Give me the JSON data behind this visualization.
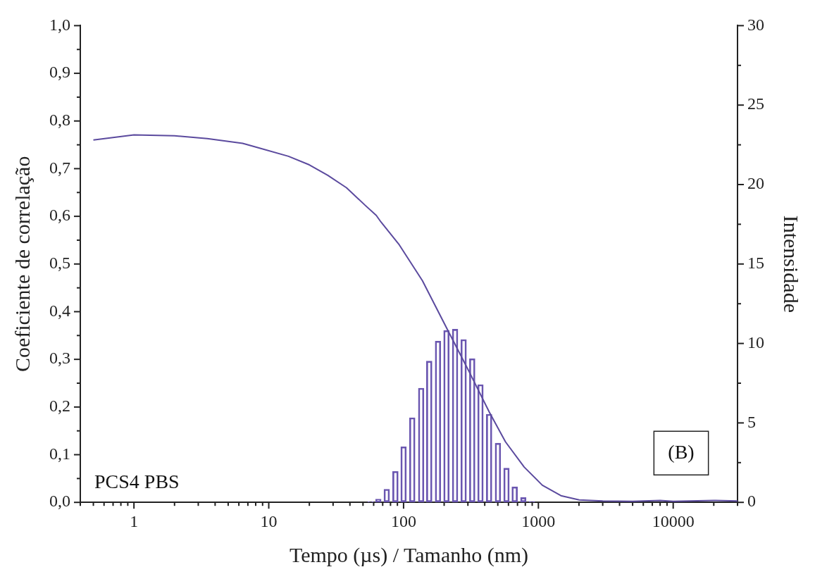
{
  "chart_data": {
    "type": "line",
    "xlabel": "Tempo (µs) / Tamanho (nm)",
    "ylabel": "Coeficiente de correlação",
    "y2label": "Intensidade",
    "annotations": [
      "PCS4 PBS",
      "(B)"
    ],
    "log": "x",
    "marker": "none",
    "line_style": "solid",
    "grid": false,
    "xlim": [
      0.4,
      30000
    ],
    "xticks": [
      {
        "value": 0.4,
        "label": null
      },
      {
        "value": 0.5,
        "label": null
      },
      {
        "value": 0.6,
        "label": null
      },
      {
        "value": 0.7,
        "label": null
      },
      {
        "value": 0.8,
        "label": null
      },
      {
        "value": 0.9,
        "label": null
      },
      1,
      {
        "value": 2,
        "label": null
      },
      {
        "value": 3,
        "label": null
      },
      {
        "value": 4,
        "label": null
      },
      {
        "value": 5,
        "label": null
      },
      {
        "value": 6,
        "label": null
      },
      {
        "value": 7,
        "label": null
      },
      {
        "value": 8,
        "label": null
      },
      {
        "value": 9,
        "label": null
      },
      10,
      {
        "value": 20,
        "label": null
      },
      {
        "value": 30,
        "label": null
      },
      {
        "value": 40,
        "label": null
      },
      {
        "value": 50,
        "label": null
      },
      {
        "value": 60,
        "label": null
      },
      {
        "value": 70,
        "label": null
      },
      {
        "value": 80,
        "label": null
      },
      {
        "value": 90,
        "label": null
      },
      100,
      {
        "value": 200,
        "label": null
      },
      {
        "value": 300,
        "label": null
      },
      {
        "value": 400,
        "label": null
      },
      {
        "value": 500,
        "label": null
      },
      {
        "value": 600,
        "label": null
      },
      {
        "value": 700,
        "label": null
      },
      {
        "value": 800,
        "label": null
      },
      {
        "value": 900,
        "label": null
      },
      1000,
      {
        "value": 2000,
        "label": null
      },
      {
        "value": 3000,
        "label": null
      },
      {
        "value": 4000,
        "label": null
      },
      {
        "value": 5000,
        "label": null
      },
      {
        "value": 6000,
        "label": null
      },
      {
        "value": 7000,
        "label": null
      },
      {
        "value": 8000,
        "label": null
      },
      {
        "value": 9000,
        "label": null
      },
      10000,
      {
        "value": 20000,
        "label": null
      },
      {
        "value": 30000,
        "label": null
      }
    ],
    "ylim": [
      0,
      1
    ],
    "yticks": [
      {
        "value": 0,
        "label": "0,0"
      },
      {
        "value": 0.05,
        "label": null
      },
      {
        "value": 0.1,
        "label": "0,1"
      },
      {
        "value": 0.15,
        "label": null
      },
      {
        "value": 0.2,
        "label": "0,2"
      },
      {
        "value": 0.25,
        "label": null
      },
      {
        "value": 0.3,
        "label": "0,3"
      },
      {
        "value": 0.35,
        "label": null
      },
      {
        "value": 0.4,
        "label": "0,4"
      },
      {
        "value": 0.45,
        "label": null
      },
      {
        "value": 0.5,
        "label": "0,5"
      },
      {
        "value": 0.55,
        "label": null
      },
      {
        "value": 0.6,
        "label": "0,6"
      },
      {
        "value": 0.65,
        "label": null
      },
      {
        "value": 0.7,
        "label": "0,7"
      },
      {
        "value": 0.75,
        "label": null
      },
      {
        "value": 0.8,
        "label": "0,8"
      },
      {
        "value": 0.85,
        "label": null
      },
      {
        "value": 0.9,
        "label": "0,9"
      },
      {
        "value": 0.95,
        "label": null
      },
      {
        "value": 1,
        "label": "1,0"
      }
    ],
    "y2lim": [
      0,
      30
    ],
    "y2ticks": [
      0,
      {
        "value": 2.5,
        "label": null
      },
      5,
      {
        "value": 7.5,
        "label": null
      },
      10,
      {
        "value": 12.5,
        "label": null
      },
      15,
      {
        "value": 17.5,
        "label": null
      },
      20,
      {
        "value": 22.5,
        "label": null
      },
      25,
      {
        "value": 27.5,
        "label": null
      },
      30
    ],
    "series": [
      {
        "color": "#5b4a9e",
        "x": [
          0.5,
          1,
          2,
          3.5,
          6.4,
          8.1,
          14,
          20,
          27.4,
          37.7,
          51.5,
          62.7,
          68,
          93,
          138,
          212,
          304,
          433,
          570,
          785,
          1070,
          1470,
          2010,
          3000,
          5000,
          8000,
          10000,
          20000,
          30000
        ],
        "values": [
          0.76,
          0.771,
          0.769,
          0.763,
          0.753,
          0.745,
          0.726,
          0.708,
          0.686,
          0.66,
          0.624,
          0.602,
          0.588,
          0.54,
          0.465,
          0.362,
          0.276,
          0.189,
          0.127,
          0.074,
          0.036,
          0.014,
          0.005,
          0.003,
          0.002,
          0.004,
          0.002,
          0.004,
          0.003
        ]
      },
      {
        "type": "bar",
        "axis": "y2",
        "color": "#6a56b0",
        "x": [
          57,
          65,
          75,
          87,
          100,
          116,
          135,
          155,
          180,
          208,
          241,
          279,
          323,
          372,
          431,
          501,
          580,
          667,
          773,
          895
        ],
        "values": [
          0.05,
          0.2,
          0.83,
          1.95,
          3.5,
          5.33,
          7.19,
          8.89,
          10.15,
          10.82,
          10.9,
          10.25,
          9.04,
          7.41,
          5.55,
          3.73,
          2.15,
          0.98,
          0.3,
          0.06
        ]
      }
    ]
  }
}
